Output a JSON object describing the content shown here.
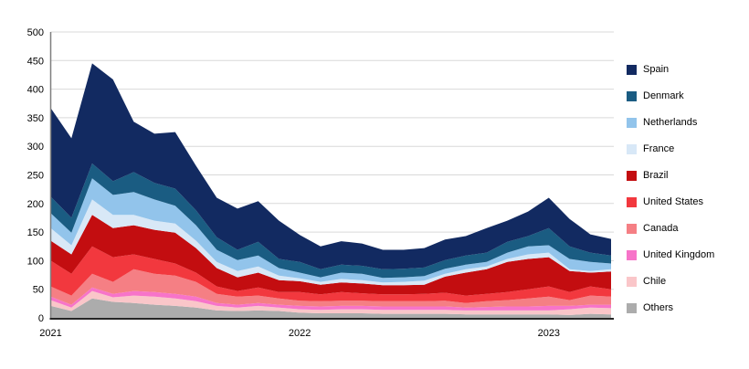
{
  "page": {
    "background_color": "#ffffff",
    "title": ""
  },
  "chart_data": {
    "type": "area",
    "stacked": true,
    "title": "",
    "xlabel": "",
    "ylabel": "",
    "grid": true,
    "legend_position": "right",
    "ylim": [
      0,
      500
    ],
    "y_tick_step": 50,
    "y_tick_labels": [
      "0",
      "50",
      "100",
      "150",
      "200",
      "250",
      "300",
      "350",
      "400",
      "450",
      "500"
    ],
    "x": [
      "2021-01",
      "2021-02",
      "2021-03",
      "2021-04",
      "2021-05",
      "2021-06",
      "2021-07",
      "2021-08",
      "2021-09",
      "2021-10",
      "2021-11",
      "2021-12",
      "2022-01",
      "2022-02",
      "2022-03",
      "2022-04",
      "2022-05",
      "2022-06",
      "2022-07",
      "2022-08",
      "2022-09",
      "2022-10",
      "2022-11",
      "2022-12",
      "2023-01",
      "2023-02",
      "2023-03",
      "2023-04"
    ],
    "x_axis_tick_labels": [
      "2021",
      "2022",
      "2023"
    ],
    "x_axis_tick_indices": [
      0,
      12,
      24
    ],
    "stack_order_note": "series listed bottom of stack first",
    "series": [
      {
        "name": "Others",
        "color": "#ACACAC",
        "values": [
          21,
          12,
          34,
          28,
          26,
          23,
          21,
          18,
          13,
          12,
          13,
          12,
          9,
          8,
          8,
          8,
          7,
          7,
          7,
          7,
          6,
          6,
          6,
          6,
          6,
          5,
          7,
          6
        ]
      },
      {
        "name": "Chile",
        "color": "#FAC6C9",
        "values": [
          10,
          6,
          13,
          8,
          13,
          14,
          13,
          11,
          8,
          6,
          8,
          6,
          6,
          6,
          7,
          7,
          7,
          7,
          7,
          7,
          7,
          7,
          7,
          7,
          7,
          10,
          11,
          11
        ]
      },
      {
        "name": "United Kingdom",
        "color": "#F774C9",
        "values": [
          6,
          5,
          6,
          6,
          8,
          8,
          8,
          8,
          5,
          5,
          5,
          5,
          6,
          6,
          6,
          6,
          6,
          6,
          6,
          6,
          5,
          6,
          7,
          7,
          8,
          6,
          5,
          6
        ]
      },
      {
        "name": "Canada",
        "color": "#F57F84",
        "values": [
          18,
          16,
          24,
          21,
          38,
          32,
          32,
          26,
          16,
          14,
          13,
          11,
          9,
          9,
          9,
          9,
          9,
          9,
          9,
          10,
          8,
          10,
          11,
          14,
          16,
          10,
          16,
          14
        ]
      },
      {
        "name": "United States",
        "color": "#F2383E",
        "values": [
          45,
          38,
          48,
          43,
          26,
          26,
          21,
          16,
          13,
          10,
          14,
          11,
          15,
          12,
          15,
          13,
          12,
          12,
          13,
          14,
          13,
          13,
          14,
          16,
          18,
          14,
          16,
          13
        ]
      },
      {
        "name": "Brazil",
        "color": "#C30D10",
        "values": [
          35,
          34,
          55,
          51,
          51,
          51,
          54,
          43,
          32,
          24,
          26,
          21,
          19,
          17,
          17,
          17,
          16,
          16,
          16,
          28,
          40,
          43,
          53,
          53,
          51,
          37,
          24,
          31
        ]
      },
      {
        "name": "France",
        "color": "#D8E8F7",
        "values": [
          22,
          16,
          27,
          23,
          18,
          16,
          16,
          13,
          11,
          11,
          11,
          8,
          5,
          5,
          6,
          6,
          5,
          6,
          7,
          5,
          6,
          5,
          5,
          8,
          8,
          3,
          3,
          4
        ]
      },
      {
        "name": "Netherlands",
        "color": "#92C4EB",
        "values": [
          26,
          22,
          37,
          35,
          40,
          37,
          31,
          27,
          21,
          19,
          19,
          13,
          10,
          8,
          11,
          11,
          8,
          8,
          8,
          9,
          8,
          8,
          11,
          14,
          13,
          18,
          16,
          10
        ]
      },
      {
        "name": "Denmark",
        "color": "#1A5C82",
        "values": [
          29,
          26,
          26,
          24,
          35,
          29,
          30,
          26,
          22,
          18,
          24,
          16,
          19,
          14,
          14,
          14,
          15,
          15,
          15,
          15,
          16,
          16,
          19,
          18,
          30,
          22,
          16,
          14
        ]
      },
      {
        "name": "Spain",
        "color": "#122A61",
        "values": [
          155,
          139,
          175,
          178,
          88,
          86,
          99,
          78,
          69,
          72,
          71,
          67,
          47,
          40,
          41,
          39,
          34,
          33,
          34,
          36,
          34,
          43,
          37,
          43,
          53,
          48,
          32,
          29
        ]
      }
    ],
    "legend_order_top_to_bottom": [
      "Spain",
      "Denmark",
      "Netherlands",
      "France",
      "Brazil",
      "United States",
      "Canada",
      "United Kingdom",
      "Chile",
      "Others"
    ]
  },
  "style": {
    "gridline_color": "#d9d9d9",
    "left_spine_color": "#7f7f7f",
    "bottom_spine_color": "#262626",
    "text_color": "#000000"
  }
}
